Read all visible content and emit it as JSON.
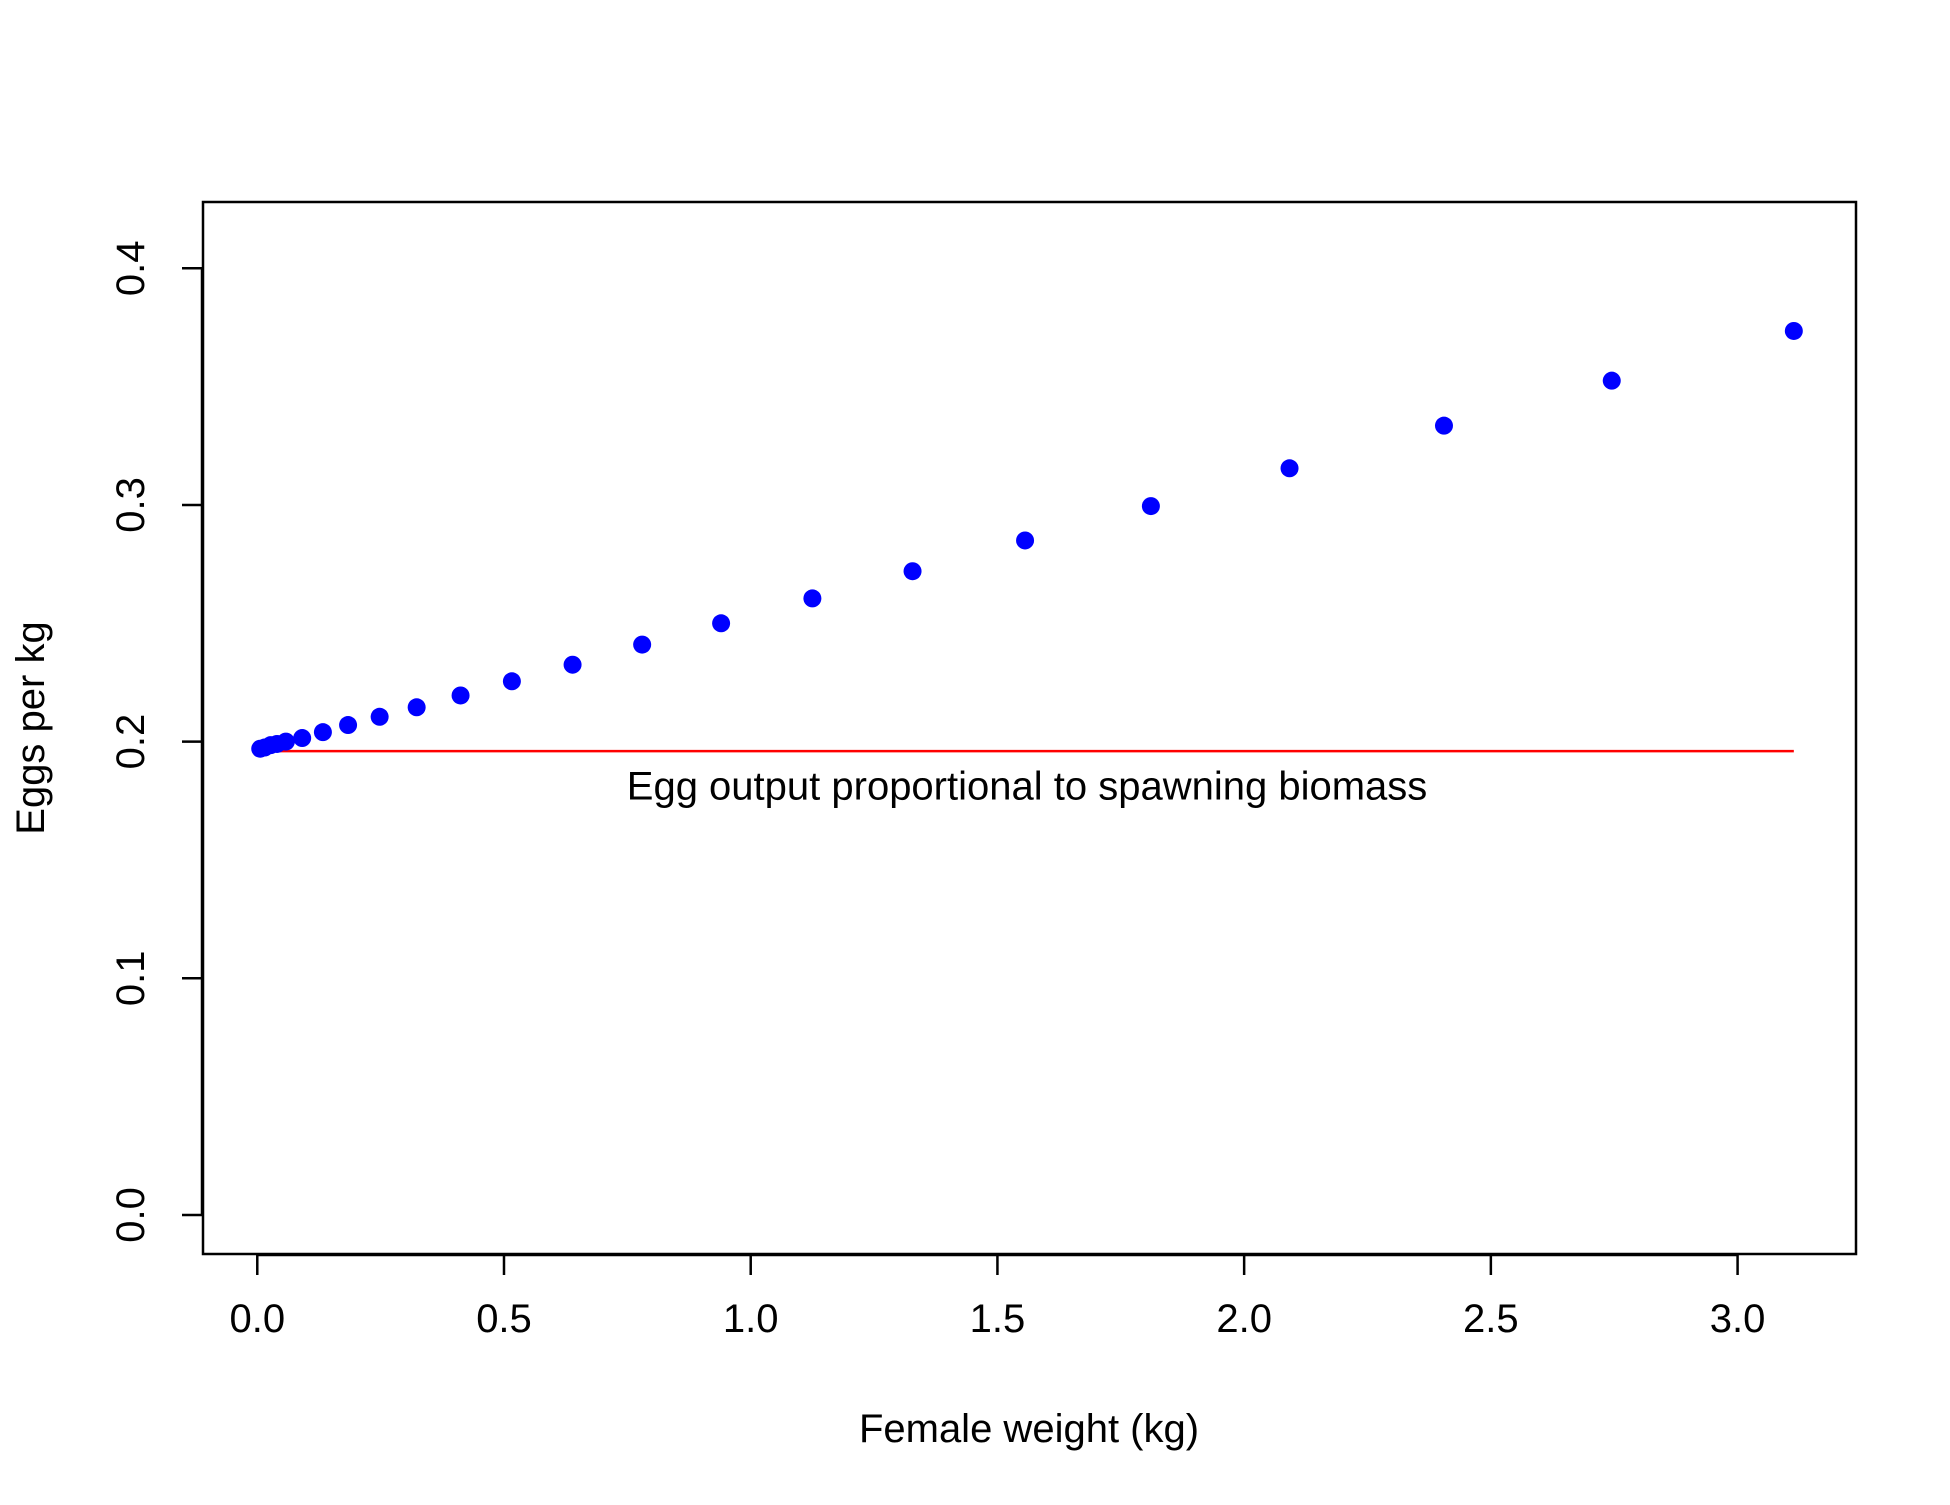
{
  "chart_data": {
    "type": "scatter",
    "xlabel": "Female weight (kg)",
    "ylabel": "Eggs per kg",
    "xlim": [
      -0.11,
      3.24
    ],
    "ylim": [
      -0.0165,
      0.428
    ],
    "x_ticks": [
      0.0,
      0.5,
      1.0,
      1.5,
      2.0,
      2.5,
      3.0
    ],
    "x_tick_labels": [
      "0.0",
      "0.5",
      "1.0",
      "1.5",
      "2.0",
      "2.5",
      "3.0"
    ],
    "y_ticks": [
      0.0,
      0.1,
      0.2,
      0.3,
      0.4
    ],
    "y_tick_labels": [
      "0.0",
      "0.1",
      "0.2",
      "0.3",
      "0.4"
    ],
    "grid": false,
    "series": [
      {
        "type": "scatter",
        "color": "#0000ff",
        "points": [
          [
            0.006,
            0.197
          ],
          [
            0.015,
            0.1975
          ],
          [
            0.027,
            0.1985
          ],
          [
            0.04,
            0.199
          ],
          [
            0.058,
            0.2
          ],
          [
            0.091,
            0.2015
          ],
          [
            0.133,
            0.204
          ],
          [
            0.184,
            0.207
          ],
          [
            0.248,
            0.2105
          ],
          [
            0.323,
            0.2145
          ],
          [
            0.412,
            0.2195
          ],
          [
            0.516,
            0.2255
          ],
          [
            0.639,
            0.2325
          ],
          [
            0.78,
            0.241
          ],
          [
            0.94,
            0.25
          ],
          [
            1.125,
            0.2605
          ],
          [
            1.328,
            0.272
          ],
          [
            1.556,
            0.285
          ],
          [
            1.811,
            0.2995
          ],
          [
            2.092,
            0.3155
          ],
          [
            2.405,
            0.3335
          ],
          [
            2.745,
            0.3525
          ],
          [
            3.114,
            0.3735
          ]
        ]
      },
      {
        "type": "line",
        "color": "#ff0000",
        "x": [
          0.006,
          3.114
        ],
        "y": [
          0.196,
          0.196
        ]
      }
    ],
    "annotations": [
      {
        "text": "Egg output proportional to spawning biomass",
        "x": 1.56,
        "y": 0.1755
      }
    ]
  }
}
